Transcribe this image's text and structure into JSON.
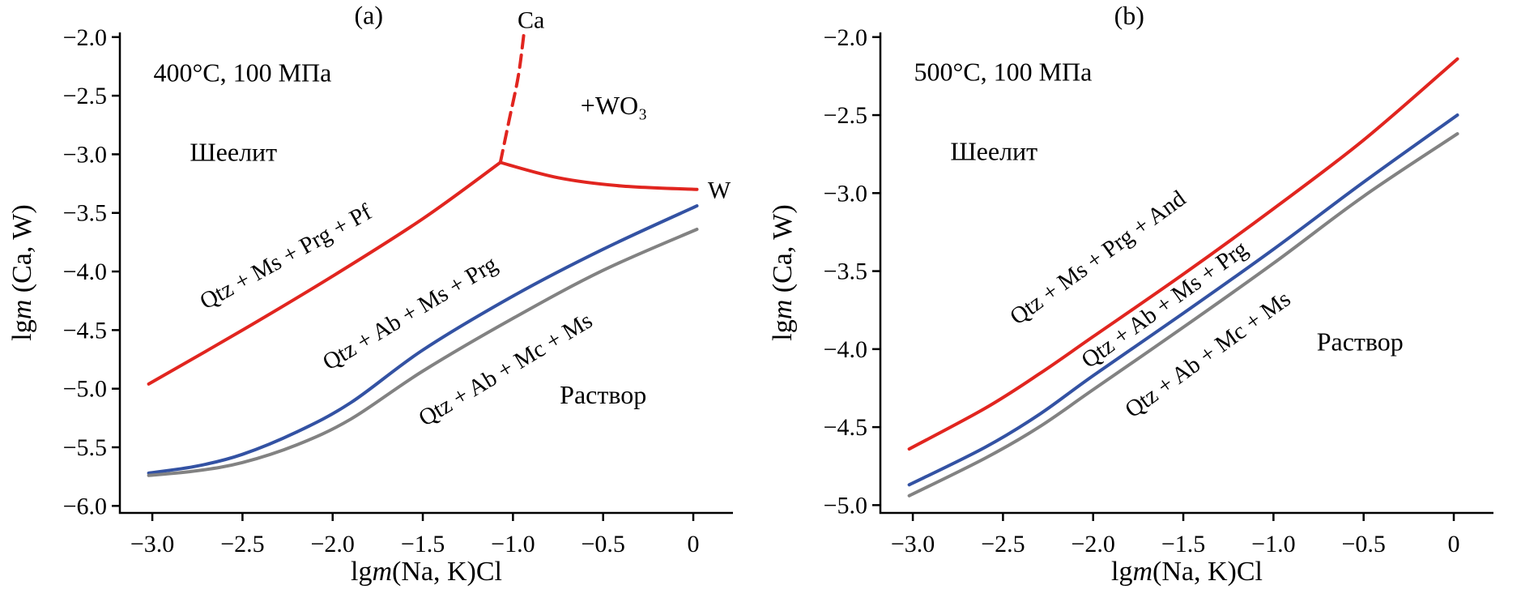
{
  "figure": {
    "background": "#ffffff",
    "axis_color": "#000000",
    "text_color": "#000000"
  },
  "chart_data": [
    {
      "type": "line",
      "panel_label": "(a)",
      "title": "400°C, 100 МПа",
      "xlabel": {
        "pre": "lg",
        "italic": "m",
        "post": "(Na, K)Cl"
      },
      "ylabel": {
        "pre": "lg",
        "italic": "m",
        "post": " (Ca, W)"
      },
      "xlabel_text": "lgm(Na, K)Cl",
      "ylabel_text": "lgm (Ca, W)",
      "grid": false,
      "legend": "none",
      "xlim": [
        -3.18,
        0.22
      ],
      "ylim": [
        -6.06,
        -1.96
      ],
      "xticks": [
        {
          "v": -3.0,
          "label": "−3.0"
        },
        {
          "v": -2.5,
          "label": "−2.5"
        },
        {
          "v": -2.0,
          "label": "−2.0"
        },
        {
          "v": -1.5,
          "label": "−1.5"
        },
        {
          "v": -1.0,
          "label": "−1.0"
        },
        {
          "v": -0.5,
          "label": "−0.5"
        },
        {
          "v": 0,
          "label": "0"
        }
      ],
      "yticks": [
        {
          "v": -6.0,
          "label": "−6.0"
        },
        {
          "v": -5.5,
          "label": "−5.5"
        },
        {
          "v": -5.0,
          "label": "−5.0"
        },
        {
          "v": -4.5,
          "label": "−4.5"
        },
        {
          "v": -4.0,
          "label": "−4.0"
        },
        {
          "v": -3.5,
          "label": "−3.5"
        },
        {
          "v": -3.0,
          "label": "−3.0"
        },
        {
          "v": -2.5,
          "label": "−2.5"
        },
        {
          "v": -2.0,
          "label": "−2.0"
        }
      ],
      "series": [
        {
          "id": "qtz-ms-prg-pf",
          "name": "Qtz + Ms + Prg + Pf",
          "color": "#e1251f",
          "dash": false,
          "points": [
            [
              -3.02,
              -4.96
            ],
            [
              -2.5,
              -4.5
            ],
            [
              -2.0,
              -4.04
            ],
            [
              -1.5,
              -3.55
            ],
            [
              -1.07,
              -3.07
            ]
          ]
        },
        {
          "id": "scheelite-w-branch",
          "name": "W branch",
          "color": "#e1251f",
          "dash": false,
          "points": [
            [
              -1.07,
              -3.07
            ],
            [
              -0.75,
              -3.2
            ],
            [
              -0.4,
              -3.27
            ],
            [
              0.02,
              -3.3
            ]
          ]
        },
        {
          "id": "ca-branch",
          "name": "Ca branch",
          "color": "#e1251f",
          "dash": true,
          "points": [
            [
              -1.07,
              -3.07
            ],
            [
              -1.02,
              -2.7
            ],
            [
              -0.97,
              -2.33
            ],
            [
              -0.94,
              -1.98
            ]
          ]
        },
        {
          "id": "qtz-ab-ms-prg",
          "name": "Qtz + Ab + Ms + Prg",
          "color": "#3352a3",
          "dash": false,
          "points": [
            [
              -3.02,
              -5.72
            ],
            [
              -2.75,
              -5.66
            ],
            [
              -2.5,
              -5.56
            ],
            [
              -2.2,
              -5.37
            ],
            [
              -1.9,
              -5.12
            ],
            [
              -1.5,
              -4.67
            ],
            [
              -1.0,
              -4.21
            ],
            [
              -0.5,
              -3.81
            ],
            [
              0.02,
              -3.44
            ]
          ]
        },
        {
          "id": "qtz-ab-mc-ms",
          "name": "Qtz + Ab + Mc + Ms",
          "color": "#828282",
          "dash": false,
          "points": [
            [
              -3.02,
              -5.74
            ],
            [
              -2.75,
              -5.7
            ],
            [
              -2.5,
              -5.63
            ],
            [
              -2.2,
              -5.48
            ],
            [
              -1.9,
              -5.26
            ],
            [
              -1.5,
              -4.85
            ],
            [
              -1.0,
              -4.4
            ],
            [
              -0.5,
              -3.99
            ],
            [
              0.02,
              -3.64
            ]
          ]
        }
      ],
      "annotations": [
        {
          "name": "panel-label-a",
          "text": "(a)",
          "x": -1.8,
          "y": -1.81,
          "size": 32
        },
        {
          "name": "conditions-label",
          "text": "400°C, 100 МПа",
          "x": -2.5,
          "y": -2.3,
          "size": 32
        },
        {
          "name": "region-label-scheelite",
          "text": "Шеелит",
          "x": -2.55,
          "y": -2.98,
          "size": 32
        },
        {
          "name": "region-label-wo3",
          "text": "+WO₃",
          "x": -0.44,
          "y": -2.58,
          "size": 32
        },
        {
          "name": "endpoint-label-ca",
          "text": "Ca",
          "x": -0.9,
          "y": -1.85,
          "size": 30
        },
        {
          "name": "endpoint-label-w",
          "text": "W",
          "x": 0.08,
          "y": -3.3,
          "size": 30,
          "anchor": "start"
        },
        {
          "name": "region-label-solution",
          "text": "Раствор",
          "x": -0.5,
          "y": -5.05,
          "size": 32
        },
        {
          "name": "curve-label-red",
          "text": "Qtz + Ms + Prg + Pf",
          "x": -2.24,
          "y": -3.86,
          "size": 29,
          "rotate": -29
        },
        {
          "name": "curve-label-blue",
          "text": "Qtz + Ab + Ms + Prg",
          "x": -1.55,
          "y": -4.34,
          "size": 29,
          "rotate": -31
        },
        {
          "name": "curve-label-gray",
          "text": "Qtz + Ab + Mc + Ms",
          "x": -1.02,
          "y": -4.82,
          "size": 29,
          "rotate": -31
        }
      ]
    },
    {
      "type": "line",
      "panel_label": "(b)",
      "title": "500°C, 100 МПа",
      "xlabel": {
        "pre": "lg",
        "italic": "m",
        "post": "(Na, K)Cl"
      },
      "ylabel": {
        "pre": "lg",
        "italic": "m",
        "post": " (Ca, W)"
      },
      "xlabel_text": "lgm(Na, K)Cl",
      "ylabel_text": "lgm (Ca, W)",
      "grid": false,
      "legend": "none",
      "xlim": [
        -3.18,
        0.22
      ],
      "ylim": [
        -5.05,
        -1.97
      ],
      "xticks": [
        {
          "v": -3.0,
          "label": "−3.0"
        },
        {
          "v": -2.5,
          "label": "−2.5"
        },
        {
          "v": -2.0,
          "label": "−2.0"
        },
        {
          "v": -1.5,
          "label": "−1.5"
        },
        {
          "v": -1.0,
          "label": "−1.0"
        },
        {
          "v": -0.5,
          "label": "−0.5"
        },
        {
          "v": 0,
          "label": "0"
        }
      ],
      "yticks": [
        {
          "v": -5.0,
          "label": "−5.0"
        },
        {
          "v": -4.5,
          "label": "−4.5"
        },
        {
          "v": -4.0,
          "label": "−4.0"
        },
        {
          "v": -3.5,
          "label": "−3.5"
        },
        {
          "v": -3.0,
          "label": "−3.0"
        },
        {
          "v": -2.5,
          "label": "−2.5"
        },
        {
          "v": -2.0,
          "label": "−2.0"
        }
      ],
      "series": [
        {
          "id": "qtz-ms-prg-and",
          "name": "Qtz + Ms + Prg + And",
          "color": "#e1251f",
          "dash": false,
          "points": [
            [
              -3.02,
              -4.64
            ],
            [
              -2.6,
              -4.38
            ],
            [
              -2.3,
              -4.16
            ],
            [
              -2.0,
              -3.92
            ],
            [
              -1.5,
              -3.52
            ],
            [
              -1.0,
              -3.1
            ],
            [
              -0.5,
              -2.66
            ],
            [
              0.02,
              -2.14
            ]
          ]
        },
        {
          "id": "qtz-ab-ms-prg",
          "name": "Qtz + Ab + Ms + Prg",
          "color": "#3352a3",
          "dash": false,
          "points": [
            [
              -3.02,
              -4.87
            ],
            [
              -2.6,
              -4.63
            ],
            [
              -2.3,
              -4.42
            ],
            [
              -2.0,
              -4.17
            ],
            [
              -1.5,
              -3.77
            ],
            [
              -1.0,
              -3.36
            ],
            [
              -0.5,
              -2.93
            ],
            [
              0.02,
              -2.5
            ]
          ]
        },
        {
          "id": "qtz-ab-mc-ms",
          "name": "Qtz + Ab + Mc + Ms",
          "color": "#828282",
          "dash": false,
          "points": [
            [
              -3.02,
              -4.94
            ],
            [
              -2.6,
              -4.7
            ],
            [
              -2.3,
              -4.5
            ],
            [
              -2.0,
              -4.26
            ],
            [
              -1.5,
              -3.86
            ],
            [
              -1.0,
              -3.45
            ],
            [
              -0.5,
              -3.02
            ],
            [
              0.02,
              -2.62
            ]
          ]
        }
      ],
      "annotations": [
        {
          "name": "panel-label-b",
          "text": "(b)",
          "x": -1.8,
          "y": -1.86,
          "size": 32
        },
        {
          "name": "conditions-label",
          "text": "500°C, 100 МПа",
          "x": -2.5,
          "y": -2.22,
          "size": 32
        },
        {
          "name": "region-label-scheelite",
          "text": "Шеелит",
          "x": -2.55,
          "y": -2.73,
          "size": 32
        },
        {
          "name": "region-label-solution",
          "text": "Раствор",
          "x": -0.52,
          "y": -3.95,
          "size": 32
        },
        {
          "name": "curve-label-red",
          "text": "Qtz + Ms + Prg + And",
          "x": -1.95,
          "y": -3.4,
          "size": 29,
          "rotate": -36
        },
        {
          "name": "curve-label-blue",
          "text": "Qtz + Ab + Ms + Prg",
          "x": -1.58,
          "y": -3.7,
          "size": 29,
          "rotate": -36
        },
        {
          "name": "curve-label-gray",
          "text": "Qtz + Ab + Mc + Ms",
          "x": -1.34,
          "y": -4.02,
          "size": 29,
          "rotate": -36
        }
      ]
    }
  ]
}
